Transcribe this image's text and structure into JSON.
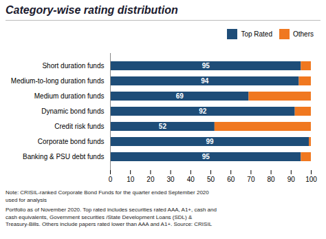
{
  "chart_data": {
    "type": "bar",
    "title": "Category-wise rating distribution",
    "orientation": "horizontal",
    "stacked": true,
    "categories": [
      "Short duration funds",
      "Medium-to-long duration funds",
      "Medium duration funds",
      "Dynamic bond funds",
      "Credit risk funds",
      "Corporate bond funds",
      "Banking & PSU debt funds"
    ],
    "series": [
      {
        "name": "Top Rated",
        "color": "#1e4d78",
        "values": [
          95,
          94,
          69,
          92,
          52,
          99,
          95
        ],
        "data_labels": true
      },
      {
        "name": "Others",
        "color": "#f07820",
        "values": [
          5,
          6,
          31,
          8,
          48,
          1,
          5
        ]
      }
    ],
    "xlim": [
      0,
      100
    ],
    "xticks": [
      0,
      10,
      20,
      30,
      40,
      50,
      60,
      70,
      80,
      90,
      100
    ],
    "legend": "top-right",
    "grid": false,
    "annotations": [
      "Note: CRISIL-ranked Corporate Bond Funds for the quarter ended September 2020\nused for analysis",
      "Portfolio as of November 2020. Top rated includes securities rated AAA, A1+, cash and\ncash equivalents, Government securities /State Development Loans (SDL) &\nTreasury-Bills. Others include papers rated lower than AAA and A1+. Source: CRISIL"
    ]
  }
}
